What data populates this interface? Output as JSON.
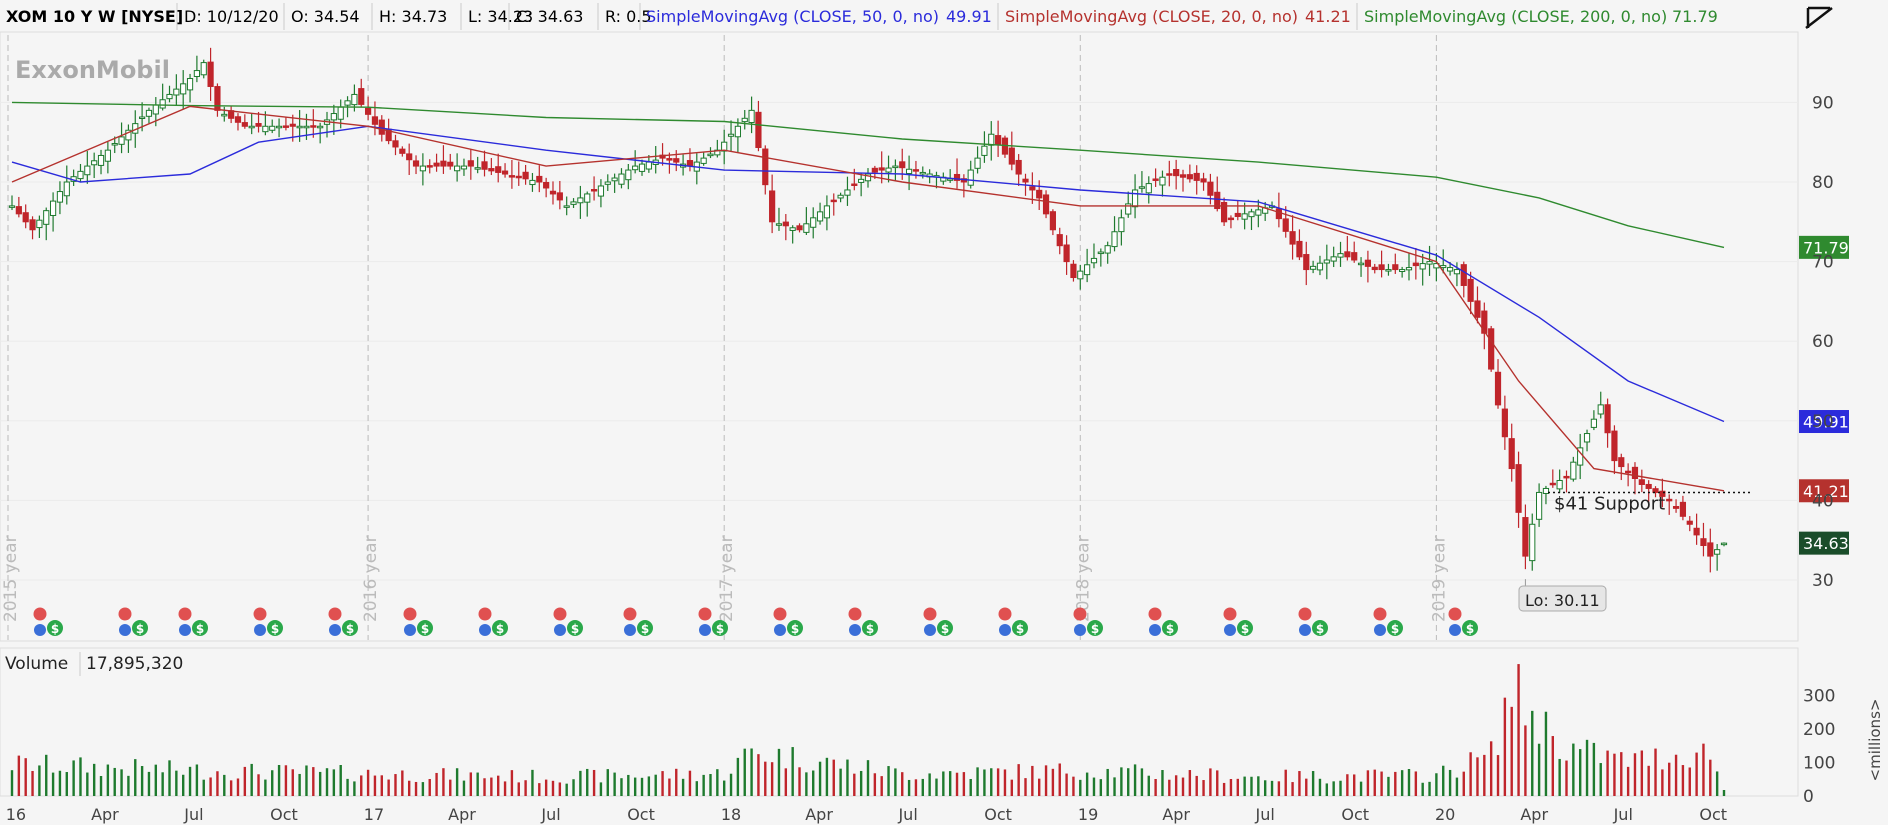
{
  "header": {
    "symbol": "XOM 10 Y W [NYSE]",
    "date": "D: 10/12/20",
    "open": "O: 34.54",
    "high": "H: 34.73",
    "low": "L: 34.23",
    "close": "C: 34.63",
    "range": "R: 0.5",
    "sma50_label": "SimpleMovingAvg (CLOSE, 50, 0, no)",
    "sma50_value": "49.91",
    "sma20_label": "SimpleMovingAvg (CLOSE, 20, 0, no)",
    "sma20_value": "41.21",
    "sma200_label": "SimpleMovingAvg (CLOSE, 200, 0, no)",
    "sma200_value": "71.79"
  },
  "watermark": "ExxonMobil",
  "price_tags": {
    "sma200": "71.79",
    "sma50": "49.91",
    "sma20": "41.21",
    "last": "34.63"
  },
  "colors": {
    "sma50": "#2b2bdb",
    "sma20": "#b5322e",
    "sma200": "#2f8a2f",
    "up": "#1e7a2e",
    "down": "#c0252b",
    "last_tag": "#1a4d2a"
  },
  "annotations": {
    "support": "$41 Support",
    "low": "Lo: 30.11"
  },
  "year_separators": [
    "2015 year",
    "2016 year",
    "2017 year",
    "2018 year",
    "2019 year"
  ],
  "volume": {
    "label": "Volume",
    "value": "17,895,320",
    "unit": "<millions>"
  },
  "chart_data": [
    {
      "type": "candlestick",
      "title": "XOM 10 Y W [NYSE]",
      "ylim": [
        23,
        98
      ],
      "yticks": [
        30,
        40,
        50,
        60,
        70,
        80,
        90
      ],
      "x_labels": [
        "16",
        "Apr",
        "Jul",
        "Oct",
        "17",
        "Apr",
        "Jul",
        "Oct",
        "18",
        "Apr",
        "Jul",
        "Oct",
        "19",
        "Apr",
        "Jul",
        "Oct",
        "20",
        "Apr",
        "Jul",
        "Oct"
      ],
      "close_path": [
        [
          "2015-12-28",
          77
        ],
        [
          "2016-01-18",
          74
        ],
        [
          "2016-02-22",
          80
        ],
        [
          "2016-04-04",
          84
        ],
        [
          "2016-05-16",
          89
        ],
        [
          "2016-06-27",
          93
        ],
        [
          "2016-07-11",
          95
        ],
        [
          "2016-07-25",
          89
        ],
        [
          "2016-08-22",
          87
        ],
        [
          "2016-10-03",
          87
        ],
        [
          "2016-11-07",
          87
        ],
        [
          "2016-12-12",
          91
        ],
        [
          "2017-01-09",
          86
        ],
        [
          "2017-02-13",
          82
        ],
        [
          "2017-03-13",
          82
        ],
        [
          "2017-04-10",
          82
        ],
        [
          "2017-05-15",
          81
        ],
        [
          "2017-06-19",
          80
        ],
        [
          "2017-07-17",
          77
        ],
        [
          "2017-08-14",
          79
        ],
        [
          "2017-09-25",
          82
        ],
        [
          "2017-10-23",
          83
        ],
        [
          "2017-11-20",
          82
        ],
        [
          "2017-12-18",
          84
        ],
        [
          "2018-01-22",
          89
        ],
        [
          "2018-02-12",
          75
        ],
        [
          "2018-03-12",
          74
        ],
        [
          "2018-04-09",
          77
        ],
        [
          "2018-05-21",
          81
        ],
        [
          "2018-06-18",
          82
        ],
        [
          "2018-07-23",
          81
        ],
        [
          "2018-08-27",
          80
        ],
        [
          "2018-09-24",
          86
        ],
        [
          "2018-10-22",
          81
        ],
        [
          "2018-11-12",
          78
        ],
        [
          "2018-12-17",
          68
        ],
        [
          "2019-01-21",
          72
        ],
        [
          "2019-02-18",
          79
        ],
        [
          "2019-03-25",
          81
        ],
        [
          "2019-04-29",
          80
        ],
        [
          "2019-05-20",
          75
        ],
        [
          "2019-06-10",
          76
        ],
        [
          "2019-07-08",
          77
        ],
        [
          "2019-08-12",
          69
        ],
        [
          "2019-09-16",
          71
        ],
        [
          "2019-10-21",
          69
        ],
        [
          "2019-11-18",
          69
        ],
        [
          "2019-12-16",
          70
        ],
        [
          "2020-01-13",
          69
        ],
        [
          "2020-02-10",
          61
        ],
        [
          "2020-02-24",
          52
        ],
        [
          "2020-03-09",
          44
        ],
        [
          "2020-03-23",
          33
        ],
        [
          "2020-04-06",
          41
        ],
        [
          "2020-05-04",
          43
        ],
        [
          "2020-06-08",
          52
        ],
        [
          "2020-06-22",
          45
        ],
        [
          "2020-07-20",
          42
        ],
        [
          "2020-08-17",
          40
        ],
        [
          "2020-09-07",
          37
        ],
        [
          "2020-09-28",
          33
        ],
        [
          "2020-10-12",
          34.63
        ]
      ],
      "series": [
        {
          "name": "SimpleMovingAvg (CLOSE, 200, 0, no)",
          "points": [
            [
              "2015-12-28",
              90
            ],
            [
              "2016-06-27",
              89.6
            ],
            [
              "2016-12-26",
              89.4
            ],
            [
              "2017-06-26",
              88.1
            ],
            [
              "2017-12-25",
              87.6
            ],
            [
              "2018-06-25",
              85.4
            ],
            [
              "2018-12-24",
              84
            ],
            [
              "2019-06-24",
              82.5
            ],
            [
              "2019-12-23",
              80.6
            ],
            [
              "2020-04-06",
              78
            ],
            [
              "2020-07-06",
              74.5
            ],
            [
              "2020-10-12",
              71.79
            ]
          ]
        },
        {
          "name": "SimpleMovingAvg (CLOSE, 50, 0, no)",
          "points": [
            [
              "2015-12-28",
              82.5
            ],
            [
              "2016-03-07",
              80
            ],
            [
              "2016-06-27",
              81
            ],
            [
              "2016-09-05",
              85
            ],
            [
              "2016-12-26",
              87
            ],
            [
              "2017-06-26",
              84
            ],
            [
              "2017-12-25",
              81.5
            ],
            [
              "2018-06-25",
              81
            ],
            [
              "2018-12-24",
              79
            ],
            [
              "2019-06-24",
              77.5
            ],
            [
              "2019-12-23",
              70.8
            ],
            [
              "2020-04-06",
              63
            ],
            [
              "2020-07-06",
              55
            ],
            [
              "2020-10-12",
              49.91
            ]
          ]
        },
        {
          "name": "SimpleMovingAvg (CLOSE, 20, 0, no)",
          "points": [
            [
              "2015-12-28",
              80
            ],
            [
              "2016-06-27",
              89.5
            ],
            [
              "2016-12-26",
              87
            ],
            [
              "2017-06-26",
              82
            ],
            [
              "2017-12-25",
              84
            ],
            [
              "2018-06-25",
              80
            ],
            [
              "2018-12-24",
              77
            ],
            [
              "2019-06-24",
              77
            ],
            [
              "2019-12-23",
              70
            ],
            [
              "2020-03-16",
              55
            ],
            [
              "2020-06-01",
              44
            ],
            [
              "2020-10-12",
              41.21
            ]
          ]
        }
      ],
      "horizontal_lines": [
        {
          "value": 41,
          "label": "$41 Support"
        }
      ],
      "low_marker": {
        "date": "2020-03-23",
        "value": 30.11
      }
    },
    {
      "type": "bar",
      "title": "Volume",
      "ylabel": "<millions>",
      "ylim": [
        0,
        350
      ],
      "yticks": [
        0,
        100,
        200,
        300
      ],
      "x_labels": [
        "16",
        "Apr",
        "Jul",
        "Oct",
        "17",
        "Apr",
        "Jul",
        "Oct",
        "18",
        "Apr",
        "Jul",
        "Oct",
        "19",
        "Apr",
        "Jul",
        "Oct",
        "20",
        "Apr",
        "Jul",
        "Oct"
      ],
      "series": [
        {
          "name": "Volume",
          "points": [
            [
              "2015-12-28",
              100
            ],
            [
              "2016-06-27",
              80
            ],
            [
              "2016-12-26",
              70
            ],
            [
              "2017-06-26",
              60
            ],
            [
              "2017-12-25",
              70
            ],
            [
              "2018-01-22",
              140
            ],
            [
              "2018-06-25",
              70
            ],
            [
              "2018-12-24",
              80
            ],
            [
              "2019-06-24",
              60
            ],
            [
              "2019-12-23",
              65
            ],
            [
              "2020-02-17",
              130
            ],
            [
              "2020-03-09",
              340
            ],
            [
              "2020-03-23",
              280
            ],
            [
              "2020-05-04",
              150
            ],
            [
              "2020-07-06",
              110
            ],
            [
              "2020-09-28",
              140
            ],
            [
              "2020-10-12",
              17.9
            ]
          ]
        }
      ]
    }
  ]
}
